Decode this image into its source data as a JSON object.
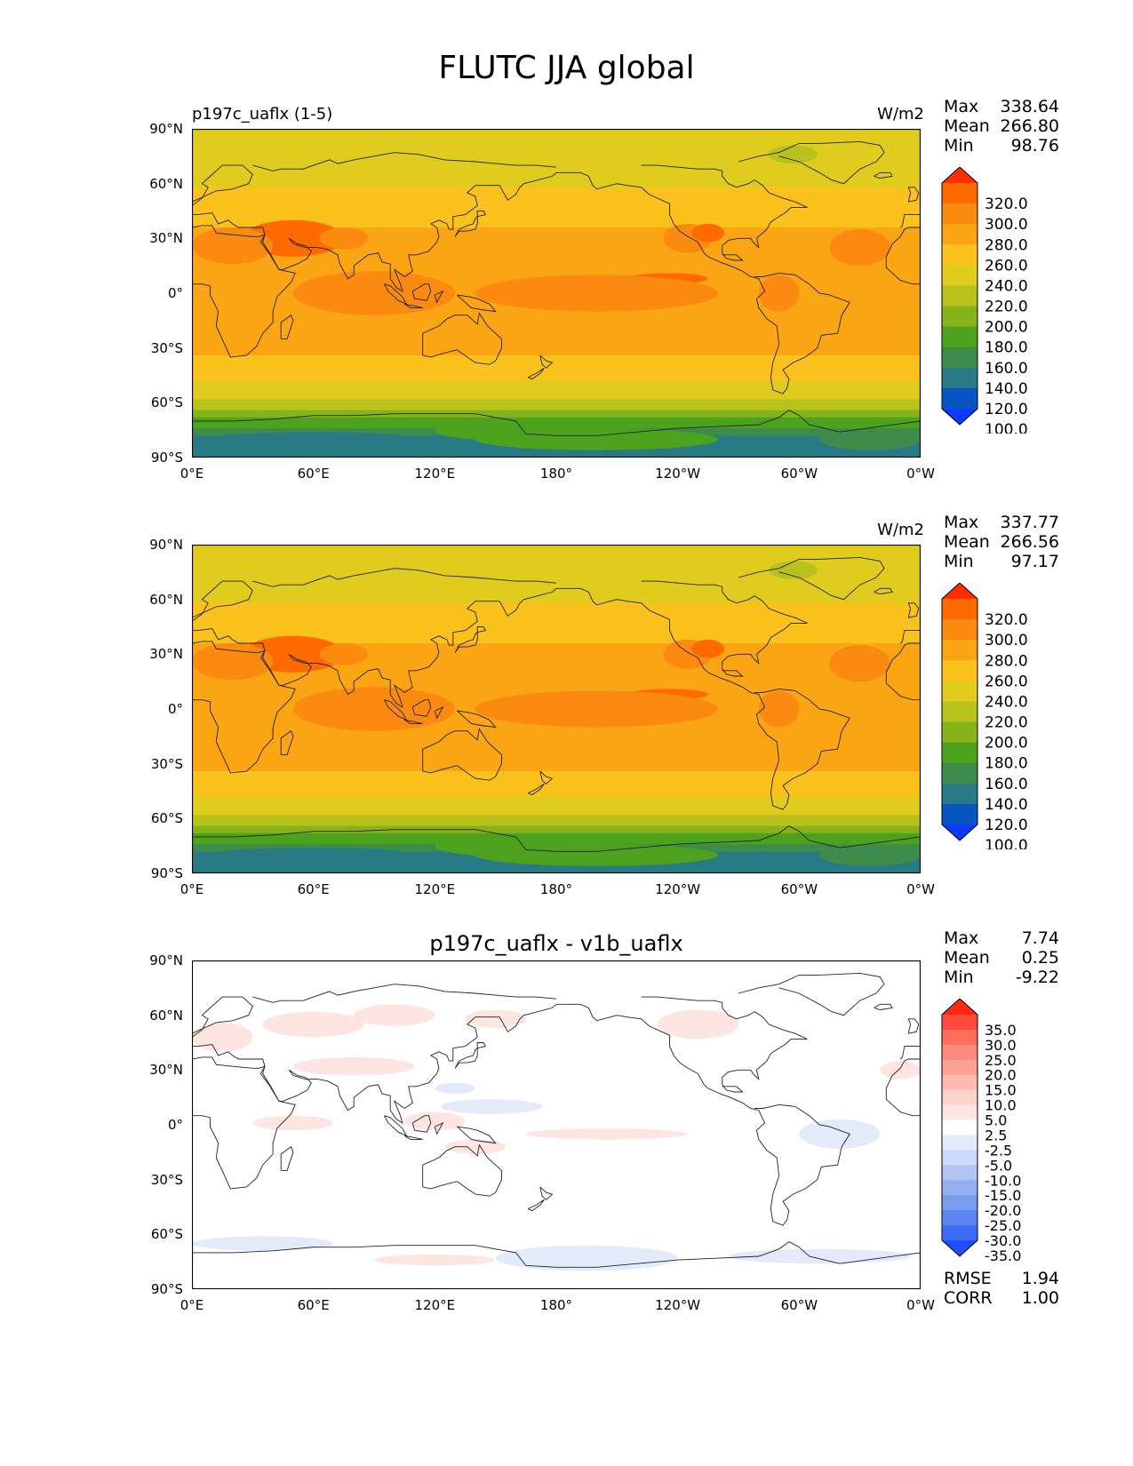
{
  "figure": {
    "title": "FLUTC JJA global"
  },
  "axes": {
    "lat_ticks": [
      "90°N",
      "60°N",
      "30°N",
      "0°",
      "30°S",
      "60°S",
      "90°S"
    ],
    "lon_ticks": [
      "0°E",
      "60°E",
      "120°E",
      "180°",
      "120°W",
      "60°W",
      "0°W"
    ]
  },
  "panels": [
    {
      "title_left": "p197c_uaflx (1-5)",
      "title_center": "",
      "units": "W/m2",
      "stats": [
        {
          "label": "Max",
          "value": "338.64"
        },
        {
          "label": "Mean",
          "value": "266.80"
        },
        {
          "label": "Min",
          "value": "98.76"
        }
      ],
      "colorbar": {
        "labels": [
          "320.0",
          "300.0",
          "280.0",
          "260.0",
          "240.0",
          "220.0",
          "200.0",
          "180.0",
          "160.0",
          "140.0",
          "120.0",
          "100.0"
        ],
        "colors": [
          "#ff2d00",
          "#ff6a00",
          "#fa8a10",
          "#fba514",
          "#fbc21e",
          "#e0cb1f",
          "#b8c21d",
          "#86b21a",
          "#4da21d",
          "#3e8c4b",
          "#277a86",
          "#0a55c4",
          "#0a3bff"
        ]
      }
    },
    {
      "title_left": "",
      "title_center": "",
      "units": "W/m2",
      "stats": [
        {
          "label": "Max",
          "value": "337.77"
        },
        {
          "label": "Mean",
          "value": "266.56"
        },
        {
          "label": "Min",
          "value": "97.17"
        }
      ],
      "colorbar": {
        "labels": [
          "320.0",
          "300.0",
          "280.0",
          "260.0",
          "240.0",
          "220.0",
          "200.0",
          "180.0",
          "160.0",
          "140.0",
          "120.0",
          "100.0"
        ],
        "colors": [
          "#ff2d00",
          "#ff6a00",
          "#fa8a10",
          "#fba514",
          "#fbc21e",
          "#e0cb1f",
          "#b8c21d",
          "#86b21a",
          "#4da21d",
          "#3e8c4b",
          "#277a86",
          "#0a55c4",
          "#0a3bff"
        ]
      }
    },
    {
      "title_left": "",
      "title_center": "p197c_uaflx - v1b_uaflx",
      "units": "",
      "stats": [
        {
          "label": "Max",
          "value": "7.74"
        },
        {
          "label": "Mean",
          "value": "0.25"
        },
        {
          "label": "Min",
          "value": "-9.22"
        }
      ],
      "extra": [
        {
          "label": "RMSE",
          "value": "1.94"
        },
        {
          "label": "CORR",
          "value": "1.00"
        }
      ],
      "colorbar": {
        "labels": [
          "35.0",
          "30.0",
          "25.0",
          "20.0",
          "15.0",
          "10.0",
          "5.0",
          "2.5",
          "-2.5",
          "-5.0",
          "-10.0",
          "-15.0",
          "-20.0",
          "-25.0",
          "-30.0",
          "-35.0"
        ],
        "colors": [
          "#ff2a10",
          "#fe4a3a",
          "#fd6d5c",
          "#fc8a7a",
          "#fca294",
          "#fdbab0",
          "#fdd2c9",
          "#fde6e1",
          "#ffffff",
          "#e3ebfb",
          "#cdd9f8",
          "#b1c4f4",
          "#95b0f1",
          "#7a9cf0",
          "#5d85f1",
          "#3f6cf4",
          "#1f4ffb"
        ]
      }
    }
  ],
  "chart_data": [
    {
      "type": "heatmap",
      "subtitle": "p197c_uaflx (1-5)",
      "units": "W/m2",
      "xlabel": "",
      "ylabel": "",
      "x_range": [
        "0°E",
        "0°W"
      ],
      "y_range": [
        "90°S",
        "90°N"
      ],
      "lat_band_values": [
        {
          "lat": 75,
          "value": 225
        },
        {
          "lat": 45,
          "value": 250
        },
        {
          "lat": 25,
          "value": 270
        },
        {
          "lat": 0,
          "value": 275
        },
        {
          "lat": -25,
          "value": 270
        },
        {
          "lat": -45,
          "value": 245
        },
        {
          "lat": -60,
          "value": 215
        },
        {
          "lat": -70,
          "value": 175
        },
        {
          "lat": -82,
          "value": 125
        }
      ],
      "contour_levels": [
        100,
        120,
        140,
        160,
        180,
        200,
        220,
        240,
        260,
        280,
        300,
        320
      ],
      "max": 338.64,
      "mean": 266.8,
      "min": 98.76
    },
    {
      "type": "heatmap",
      "units": "W/m2",
      "xlabel": "",
      "ylabel": "",
      "x_range": [
        "0°E",
        "0°W"
      ],
      "y_range": [
        "90°S",
        "90°N"
      ],
      "lat_band_values": [
        {
          "lat": 75,
          "value": 225
        },
        {
          "lat": 45,
          "value": 250
        },
        {
          "lat": 25,
          "value": 270
        },
        {
          "lat": 0,
          "value": 275
        },
        {
          "lat": -25,
          "value": 270
        },
        {
          "lat": -45,
          "value": 245
        },
        {
          "lat": -60,
          "value": 215
        },
        {
          "lat": -70,
          "value": 175
        },
        {
          "lat": -82,
          "value": 120
        }
      ],
      "contour_levels": [
        100,
        120,
        140,
        160,
        180,
        200,
        220,
        240,
        260,
        280,
        300,
        320
      ],
      "max": 337.77,
      "mean": 266.56,
      "min": 97.17
    },
    {
      "type": "heatmap",
      "title": "p197c_uaflx - v1b_uaflx",
      "xlabel": "",
      "ylabel": "",
      "x_range": [
        "0°E",
        "0°W"
      ],
      "y_range": [
        "90°S",
        "90°N"
      ],
      "contour_levels": [
        -35,
        -30,
        -25,
        -20,
        -15,
        -10,
        -5,
        -2.5,
        2.5,
        5,
        10,
        15,
        20,
        25,
        30,
        35
      ],
      "max": 7.74,
      "mean": 0.25,
      "min": -9.22,
      "rmse": 1.94,
      "corr": 1.0
    }
  ]
}
